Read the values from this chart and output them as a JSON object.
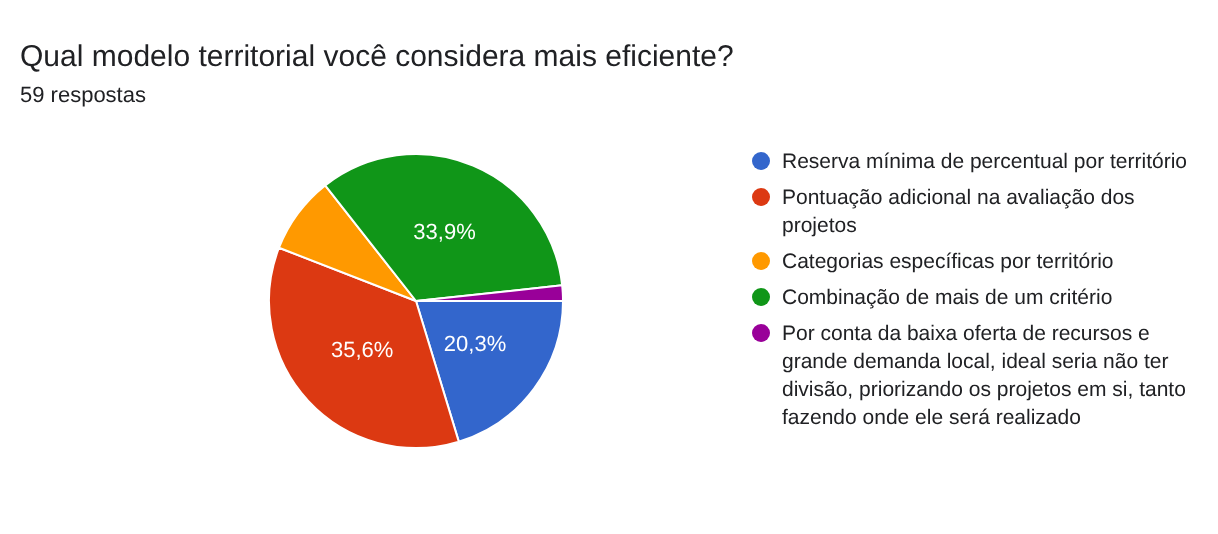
{
  "chart_data": {
    "type": "pie",
    "title": "Qual modelo territorial você considera mais eficiente?",
    "subtitle": "59 respostas",
    "categories": [
      "Reserva mínima de percentual por território",
      "Pontuação adicional na avaliação dos projetos",
      "Categorias específicas por território",
      "Combinação de mais de um critério",
      "Por conta da baixa oferta de recursos e grande demanda local, ideal seria não ter divisão, priorizando os projetos em si, tanto fazendo onde ele será realizado"
    ],
    "values": [
      20.3,
      35.6,
      8.5,
      33.9,
      1.7
    ],
    "colors": [
      "#3366cc",
      "#dc3912",
      "#ff9900",
      "#109618",
      "#990099"
    ],
    "value_labels": [
      "20,3%",
      "35,6%",
      null,
      "33,9%",
      null
    ],
    "legend": "right"
  }
}
